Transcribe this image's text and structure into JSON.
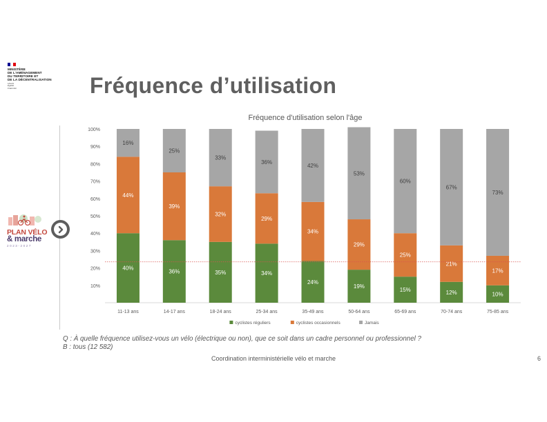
{
  "ministry": {
    "lines": [
      "MINISTÈRE",
      "DE L'AMÉNAGEMENT",
      "DU TERRITOIRE ET",
      "DE LA DÉCENTRALISATION"
    ],
    "motto": [
      "Liberté",
      "Égalité",
      "Fraternité"
    ],
    "flag_colors": [
      "#000091",
      "#ffffff",
      "#e1000f"
    ]
  },
  "slide": {
    "title": "Fréquence d’utilisation",
    "question": "Q : À quelle fréquence utilisez-vous un vélo (électrique ou non), que ce soit dans un cadre personnel ou professionnel ?",
    "base": "B : tous (12 582)",
    "footer": "Coordination interministérielle vélo et marche",
    "page_number": "6"
  },
  "logo": {
    "line1": "PLAN VÉLO",
    "line2": "& marche",
    "line3": "2023-2027"
  },
  "nav": {
    "icon": "chevron-right-icon"
  },
  "chart_data": {
    "type": "bar",
    "stacked": true,
    "title": "Fréquence d'utilisation selon l'âge",
    "categories": [
      "11-13 ans",
      "14-17 ans",
      "18-24 ans",
      "25-34 ans",
      "35-49 ans",
      "50-64 ans",
      "65-69 ans",
      "70-74 ans",
      "75-85 ans"
    ],
    "series": [
      {
        "name": "cyclistes réguliers",
        "color": "#5b8a3c",
        "values": [
          40,
          36,
          35,
          34,
          24,
          19,
          15,
          12,
          10
        ]
      },
      {
        "name": "cyclistes occasionnels",
        "color": "#d9793a",
        "values": [
          44,
          39,
          32,
          29,
          34,
          29,
          25,
          21,
          17
        ]
      },
      {
        "name": "Jamais",
        "color": "#a6a6a6",
        "values": [
          16,
          25,
          33,
          36,
          42,
          53,
          60,
          67,
          73
        ]
      }
    ],
    "data_labels": [
      [
        "40%",
        "36%",
        "35%",
        "34%",
        "24%",
        "19%",
        "15%",
        "12%",
        "10%"
      ],
      [
        "44%",
        "39%",
        "32%",
        "29%",
        "34%",
        "29%",
        "25%",
        "21%",
        "17%"
      ],
      [
        "16%",
        "25%",
        "33%",
        "36%",
        "42%",
        "53%",
        "60%",
        "67%",
        "73%"
      ]
    ],
    "ylim": [
      0,
      100
    ],
    "yticks": [
      "",
      "10%",
      "20%",
      "30%",
      "40%",
      "50%",
      "60%",
      "70%",
      "80%",
      "90%",
      "100%"
    ],
    "reference_line": {
      "value": 23.5,
      "color": "#d9534f",
      "style": "dotted"
    },
    "legend_position": "bottom",
    "grid": false
  }
}
